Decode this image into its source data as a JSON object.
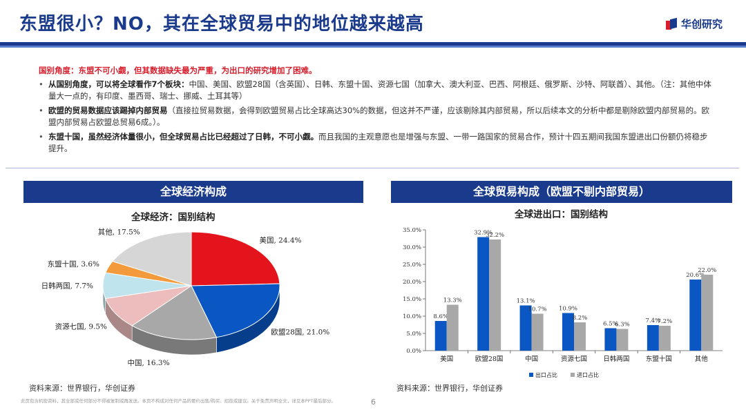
{
  "header": {
    "title": "东盟很小？NO，其在全球贸易中的地位越来越高",
    "logo_text": "华创研究"
  },
  "intro": "国别角度：东盟不可小觑，但其数据缺失最为严重，为出口的研究增加了困难。",
  "bullets": [
    {
      "bold": "从国别角度，可以将全球看作7个板块：",
      "text": "中国、美国、欧盟28国（含英国）、日韩、东盟十国、资源七国（加拿大、澳大利亚、巴西、阿根廷、俄罗斯、沙特、阿联酋）、其他。（注：其他中体量大一点的，有印度、墨西哥、瑞士、挪威、土耳其等）"
    },
    {
      "bold": "欧盟的贸易数据应该踢掉内部贸易",
      "text": "（直接拉贸易数据，会得到欧盟贸易占比全球高达30%的数据，但这并不严谨，应该剔除其内部贸易，所以后续本文的分析中都是剔除欧盟内部贸易的。欧盟内部贸易占欧盟总贸易6成。）。"
    },
    {
      "bold": "东盟十国，虽然经济体量很小，但全球贸易占比已经超过了日韩，不可小觑。",
      "text": "而且我国的主观意愿也是增强与东盟、一带一路国家的贸易合作，预计十四五期间我国东盟进出口份额仍将稳步提升。"
    }
  ],
  "left_panel": {
    "header": "全球经济构成",
    "chart_title": "全球经济：国别结构",
    "source": "资料来源：世界银行，华创证券"
  },
  "right_panel": {
    "header": "全球贸易构成（欧盟不剔内部贸易）",
    "chart_title": "全球进出口：国别结构",
    "source": "资料来源：世界银行，华创证券"
  },
  "footnote": "此页包含机密资料，其全部或任何部分不得被复制或再发送。本页不构成对任何产品的要约出售/购买、招揽或建议。关于免责声明全文，详见本PPT最后部分。",
  "page_number": "6",
  "chart_data": [
    {
      "type": "pie",
      "title": "全球经济：国别结构",
      "slices": [
        {
          "label": "美国",
          "value": 24.4,
          "display": "美国, 24.4%",
          "color": "#e3141b"
        },
        {
          "label": "欧盟28国",
          "value": 21.0,
          "display": "欧盟28国, 21.0%",
          "color": "#0a56c2"
        },
        {
          "label": "中国",
          "value": 16.3,
          "display": "中国, 16.3%",
          "color": "#a8a8a8"
        },
        {
          "label": "资源七国",
          "value": 9.5,
          "display": "资源七国, 9.5%",
          "color": "#edbdbd"
        },
        {
          "label": "日韩两国",
          "value": 7.7,
          "display": "日韩两国, 7.7%",
          "color": "#bfe4ee"
        },
        {
          "label": "东盟十国",
          "value": 3.6,
          "display": "东盟十国, 3.6%",
          "color": "#f39a3c"
        },
        {
          "label": "其他",
          "value": 17.5,
          "display": "其他, 17.5%",
          "color": "#d6d6d6"
        }
      ]
    },
    {
      "type": "bar",
      "title": "全球进出口：国别结构",
      "categories": [
        "美国",
        "欧盟28国",
        "中国",
        "资源七国",
        "日韩两国",
        "东盟十国",
        "其他"
      ],
      "series": [
        {
          "name": "出口占比",
          "values": [
            8.6,
            32.9,
            13.1,
            10.9,
            6.5,
            7.4,
            20.6
          ],
          "labels": [
            "8.6%",
            "32.9%",
            "13.1%",
            "10.9%",
            "6.5%",
            "7.4%",
            "20.6%"
          ],
          "color": "#0a56c2"
        },
        {
          "name": "进口占比",
          "values": [
            13.3,
            32.2,
            10.7,
            8.2,
            6.3,
            7.2,
            22.0
          ],
          "labels": [
            "13.3%",
            "32.2%",
            "10.7%",
            "8.2%",
            "6.3%",
            "7.2%",
            "22.0%"
          ],
          "color": "#a8a8a8"
        }
      ],
      "ylim": [
        0,
        35
      ],
      "yticks": [
        "0.0%",
        "5.0%",
        "10.0%",
        "15.0%",
        "20.0%",
        "25.0%",
        "30.0%",
        "35.0%"
      ],
      "legend_position": "bottom"
    }
  ]
}
